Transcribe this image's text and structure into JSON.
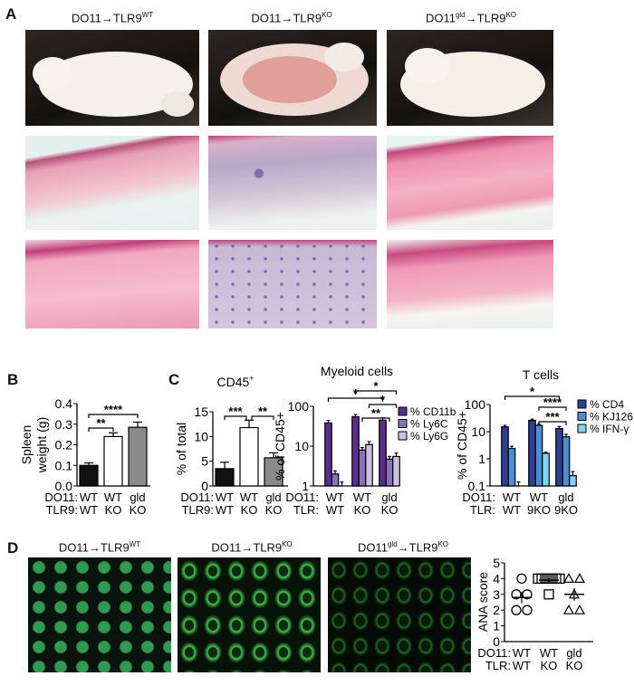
{
  "panel_labels": {
    "A": "A",
    "B": "B",
    "C": "C",
    "D": "D"
  },
  "panel_a": {
    "columns": [
      {
        "base": "DO11",
        "sup1": "",
        "arrow": "→",
        "target": "TLR9",
        "sup2": "WT"
      },
      {
        "base": "DO11",
        "sup1": "",
        "arrow": "→",
        "target": "TLR9",
        "sup2": "KO"
      },
      {
        "base": "DO11",
        "sup1": "gld",
        "arrow": "→",
        "target": "TLR9",
        "sup2": "KO"
      }
    ]
  },
  "panel_d": {
    "columns": [
      {
        "base": "DO11",
        "sup1": "",
        "arrow": "→",
        "target": "TLR9",
        "sup2": "WT"
      },
      {
        "base": "DO11",
        "sup1": "",
        "arrow": "→",
        "target": "TLR9",
        "sup2": "KO"
      },
      {
        "base": "DO11",
        "sup1": "gld",
        "arrow": "→",
        "target": "TLR9",
        "sup2": "KO"
      }
    ]
  },
  "chart_data": [
    {
      "id": "spleen",
      "type": "bar",
      "title": "",
      "ylabel": "Spleen\nweight (g)",
      "ylim": [
        0,
        0.4
      ],
      "yticks": [
        "0.0",
        "0.1",
        "0.2",
        "0.3",
        "0.4"
      ],
      "scale": "linear",
      "row_labels": [
        "DO11:",
        "TLR9:"
      ],
      "categories": [
        [
          "WT",
          "WT"
        ],
        [
          "WT",
          "KO"
        ],
        [
          "gld",
          "KO"
        ]
      ],
      "series": [
        {
          "values": [
            0.1,
            0.24,
            0.285
          ],
          "errors": [
            0.012,
            0.018,
            0.025
          ],
          "colors": [
            "#111111",
            "#ffffff",
            "#8a8a8a"
          ]
        }
      ],
      "significance": [
        {
          "label": "****",
          "from": 0,
          "to": 2
        },
        {
          "label": "**",
          "from": 0,
          "to": 1
        }
      ]
    },
    {
      "id": "cd45",
      "type": "bar",
      "title": "CD45+",
      "title_base": "CD45",
      "title_sup": "+",
      "ylabel": "% of total",
      "ylim": [
        0,
        15
      ],
      "yticks": [
        "0",
        "5",
        "10",
        "15"
      ],
      "scale": "linear",
      "row_labels": [
        "DO11:",
        "TLR9:"
      ],
      "categories": [
        [
          "WT",
          "WT"
        ],
        [
          "WT",
          "KO"
        ],
        [
          "gld",
          "KO"
        ]
      ],
      "series": [
        {
          "values": [
            3.5,
            11.8,
            5.7
          ],
          "errors": [
            1.3,
            1.5,
            1.0
          ],
          "colors": [
            "#111111",
            "#ffffff",
            "#8a8a8a"
          ]
        }
      ],
      "significance": [
        {
          "label": "***",
          "from": 0,
          "to": 1
        },
        {
          "label": "**",
          "from": 1,
          "to": 2
        }
      ]
    },
    {
      "id": "myeloid",
      "type": "bar",
      "title": "Myeloid cells",
      "ylabel": "% of CD45+",
      "ylim": [
        1,
        100
      ],
      "yticks": [
        "1",
        "10",
        "100"
      ],
      "scale": "log",
      "row_labels": [
        "DO11:",
        "TLR:"
      ],
      "categories": [
        [
          "WT",
          "WT"
        ],
        [
          "WT",
          "KO"
        ],
        [
          "gld",
          "KO"
        ]
      ],
      "series": [
        {
          "name": "% CD11b",
          "color": "#5a2d88",
          "values": [
            38,
            55,
            45
          ],
          "errors": [
            6,
            7,
            6
          ]
        },
        {
          "name": "% Ly6C",
          "color": "#8474b8",
          "values": [
            2.0,
            8.0,
            4.7
          ],
          "errors": [
            0.4,
            1.2,
            0.8
          ]
        },
        {
          "name": "% Ly6G",
          "color": "#cbc2e2",
          "values": [
            1.0,
            11,
            5.5
          ],
          "errors": [
            0.25,
            2,
            1.2
          ]
        }
      ],
      "significance": [
        {
          "label": "*",
          "from": [
            1,
            0
          ],
          "to": [
            2,
            2
          ]
        },
        {
          "label": "*",
          "from": [
            0,
            0
          ],
          "to": [
            2,
            0
          ]
        },
        {
          "label": "*",
          "from": [
            1,
            2
          ],
          "to": [
            2,
            2
          ]
        },
        {
          "label": "**",
          "from": [
            1,
            1
          ],
          "to": [
            2,
            1
          ]
        }
      ]
    },
    {
      "id": "tcells",
      "type": "bar",
      "title": "T cells",
      "ylabel": "% of CD45+",
      "ylim": [
        0.1,
        100
      ],
      "yticks": [
        "0.1",
        "1",
        "10",
        "100"
      ],
      "scale": "log",
      "row_labels": [
        "DO11:",
        "TLR:"
      ],
      "categories": [
        [
          "WT",
          "WT"
        ],
        [
          "WT",
          "9KO"
        ],
        [
          "gld",
          "9KO"
        ]
      ],
      "series": [
        {
          "name": "% CD4",
          "color": "#2c3f94",
          "values": [
            15,
            26,
            13
          ],
          "errors": [
            2,
            3,
            2.5
          ]
        },
        {
          "name": "% KJ126",
          "color": "#4b8fd0",
          "values": [
            2.4,
            17,
            6.5
          ],
          "errors": [
            0.5,
            2,
            1.5
          ]
        },
        {
          "name": "% IFN-γ",
          "color": "#80d4ef",
          "values": [
            0.1,
            1.6,
            0.24
          ],
          "errors": [
            0.04,
            0.15,
            0.1
          ]
        }
      ],
      "significance": [
        {
          "label": "*",
          "from": [
            0,
            0
          ],
          "to": [
            2,
            0
          ]
        },
        {
          "label": "****",
          "from": [
            1,
            1
          ],
          "to": [
            2,
            1
          ]
        },
        {
          "label": "***",
          "from": [
            1,
            1
          ],
          "to": [
            2,
            1
          ]
        }
      ]
    },
    {
      "id": "ana",
      "type": "scatter",
      "ylabel": "ANA score",
      "ylim": [
        0,
        5
      ],
      "yticks": [
        "0",
        "1",
        "2",
        "3",
        "4",
        "5"
      ],
      "row_labels": [
        "DO11:",
        "TLR:"
      ],
      "categories": [
        [
          "WT",
          "WT"
        ],
        [
          "WT",
          "KO"
        ],
        [
          "gld",
          "KO"
        ]
      ],
      "groups": [
        {
          "marker": "circle",
          "points": [
            4,
            3,
            3,
            2,
            2
          ],
          "mean": 2.8,
          "sem": 0.37
        },
        {
          "marker": "square",
          "points": [
            4,
            4,
            4,
            4,
            4,
            4,
            4,
            3
          ],
          "mean": 3.9,
          "sem": 0.1
        },
        {
          "marker": "triangle",
          "points": [
            4,
            4,
            3,
            2,
            2
          ],
          "mean": 3.0,
          "sem": 0.4
        }
      ]
    }
  ]
}
